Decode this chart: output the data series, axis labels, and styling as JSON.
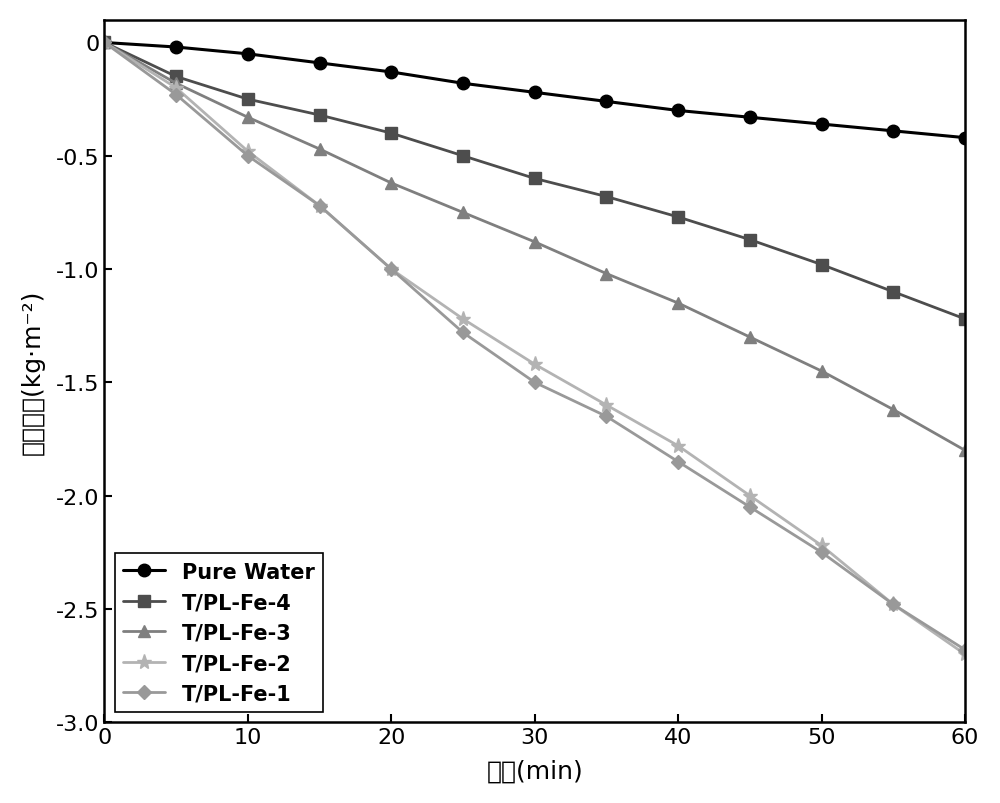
{
  "x": [
    0,
    5,
    10,
    15,
    20,
    25,
    30,
    35,
    40,
    45,
    50,
    55,
    60
  ],
  "pure_water": [
    0.0,
    -0.02,
    -0.05,
    -0.09,
    -0.13,
    -0.18,
    -0.22,
    -0.26,
    -0.3,
    -0.33,
    -0.36,
    -0.39,
    -0.42
  ],
  "tpl_fe4": [
    0.0,
    -0.15,
    -0.25,
    -0.32,
    -0.4,
    -0.5,
    -0.6,
    -0.68,
    -0.77,
    -0.87,
    -0.98,
    -1.1,
    -1.22
  ],
  "tpl_fe3": [
    0.0,
    -0.18,
    -0.33,
    -0.47,
    -0.62,
    -0.75,
    -0.88,
    -1.02,
    -1.15,
    -1.3,
    -1.45,
    -1.62,
    -1.8
  ],
  "tpl_fe2": [
    0.0,
    -0.2,
    -0.48,
    -0.72,
    -1.0,
    -1.22,
    -1.42,
    -1.6,
    -1.78,
    -2.0,
    -2.22,
    -2.48,
    -2.7
  ],
  "tpl_fe1": [
    0.0,
    -0.23,
    -0.5,
    -0.72,
    -1.0,
    -1.28,
    -1.5,
    -1.65,
    -1.85,
    -2.05,
    -2.25,
    -2.48,
    -2.68
  ],
  "colors": {
    "pure_water": "#000000",
    "tpl_fe4": "#4d4d4d",
    "tpl_fe3": "#7f7f7f",
    "tpl_fe2": "#b3b3b3",
    "tpl_fe1": "#999999"
  },
  "labels": {
    "pure_water": "Pure Water",
    "tpl_fe4": "T/PL-Fe-4",
    "tpl_fe3": "T/PL-Fe-3",
    "tpl_fe2": "T/PL-Fe-2",
    "tpl_fe1": "T/PL-Fe-1"
  },
  "xlabel": "时间(min)",
  "ylabel": "质量变化(kg·m⁻²)",
  "xlim": [
    0,
    60
  ],
  "ylim": [
    -3.0,
    0.1
  ],
  "xticks": [
    0,
    10,
    20,
    30,
    40,
    50,
    60
  ],
  "yticks": [
    0.0,
    -0.5,
    -1.0,
    -1.5,
    -2.0,
    -2.5,
    -3.0
  ],
  "title_fontsize": 16,
  "label_fontsize": 18,
  "tick_fontsize": 16,
  "legend_fontsize": 15
}
